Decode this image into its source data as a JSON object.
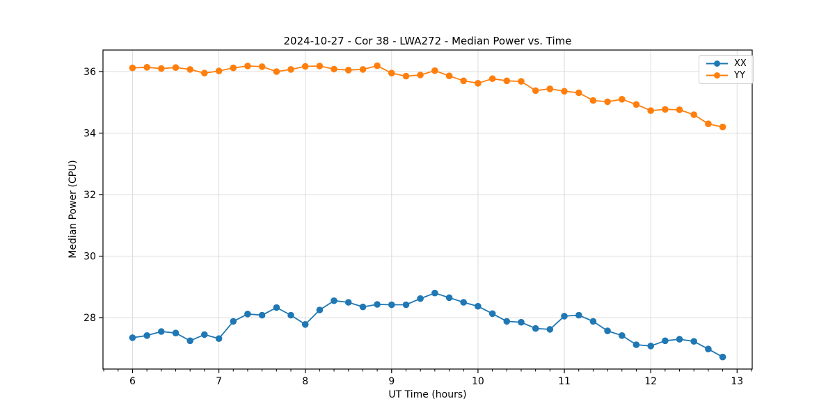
{
  "chart_data": {
    "type": "line",
    "title": "2024-10-27 - Cor 38 - LWA272 - Median Power vs. Time",
    "xlabel": "UT Time (hours)",
    "ylabel": "Median Power (CPU)",
    "x": [
      6.0,
      6.167,
      6.333,
      6.5,
      6.667,
      6.833,
      7.0,
      7.167,
      7.333,
      7.5,
      7.667,
      7.833,
      8.0,
      8.167,
      8.333,
      8.5,
      8.667,
      8.833,
      9.0,
      9.167,
      9.333,
      9.5,
      9.667,
      9.833,
      10.0,
      10.167,
      10.333,
      10.5,
      10.667,
      10.833,
      11.0,
      11.167,
      11.333,
      11.5,
      11.667,
      11.833,
      12.0,
      12.167,
      12.333,
      12.5,
      12.667,
      12.833
    ],
    "series": [
      {
        "name": "XX",
        "color": "#1f77b4",
        "values": [
          27.35,
          27.42,
          27.55,
          27.5,
          27.25,
          27.45,
          27.32,
          27.88,
          28.12,
          28.08,
          28.33,
          28.08,
          27.78,
          28.25,
          28.55,
          28.5,
          28.35,
          28.43,
          28.42,
          28.42,
          28.62,
          28.8,
          28.65,
          28.5,
          28.37,
          28.13,
          27.88,
          27.85,
          27.65,
          27.62,
          28.05,
          28.08,
          27.88,
          27.57,
          27.42,
          27.12,
          27.08,
          27.25,
          27.3,
          27.23,
          26.98,
          26.72
        ]
      },
      {
        "name": "YY",
        "color": "#ff7f0e",
        "values": [
          36.12,
          36.14,
          36.1,
          36.13,
          36.07,
          35.95,
          36.02,
          36.12,
          36.18,
          36.16,
          36.0,
          36.07,
          36.17,
          36.18,
          36.08,
          36.05,
          36.07,
          36.19,
          35.95,
          35.85,
          35.89,
          36.03,
          35.86,
          35.7,
          35.62,
          35.77,
          35.7,
          35.68,
          35.38,
          35.44,
          35.36,
          35.31,
          35.06,
          35.02,
          35.1,
          34.93,
          34.73,
          34.77,
          34.76,
          34.6,
          34.3,
          34.2
        ]
      }
    ],
    "xlim": [
      5.658,
      13.175
    ],
    "ylim": [
      26.33,
      36.7
    ],
    "xticks": [
      6,
      7,
      8,
      9,
      10,
      11,
      12,
      13
    ],
    "yticks": [
      28,
      30,
      32,
      34,
      36
    ],
    "x_minor_step": 0.1666667,
    "grid": true,
    "legend_position": "upper right"
  },
  "colors": {
    "grid": "#dcdcdc",
    "spine": "#000000",
    "text": "#000000",
    "background": "#ffffff"
  }
}
